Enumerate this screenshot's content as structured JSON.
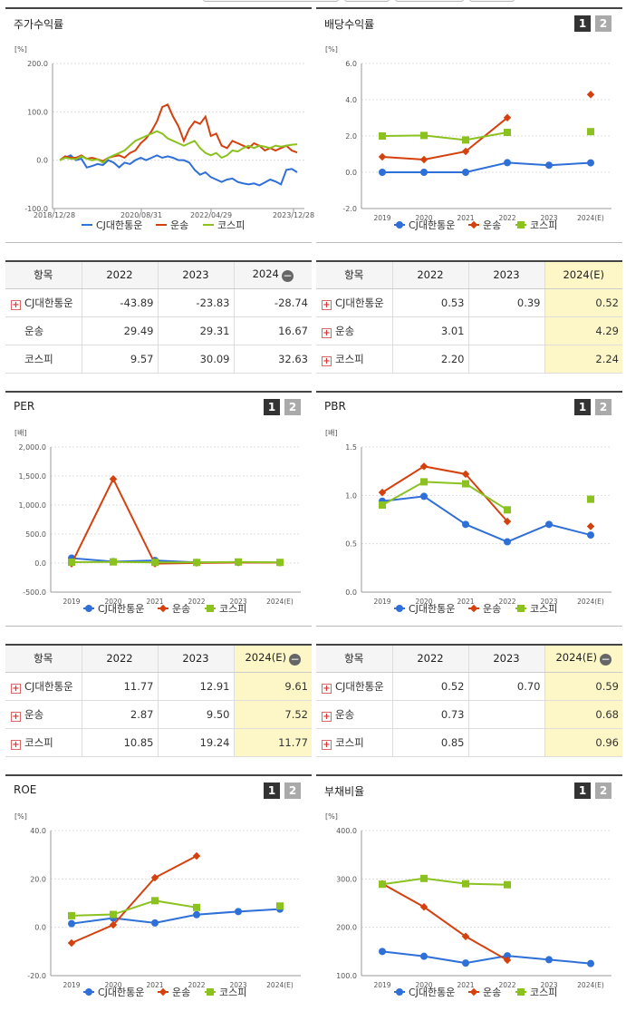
{
  "legend": [
    "CJ대한통운",
    "운송",
    "코스피"
  ],
  "colors": {
    "cj": "#2f6fd8",
    "transport": "#d4400e",
    "kospi": "#8bc21f"
  },
  "toggle": {
    "one": "1",
    "two": "2"
  },
  "panels": {
    "stock": {
      "title": "주가수익률"
    },
    "dividend": {
      "title": "배당수익률"
    },
    "per": {
      "title": "PER"
    },
    "pbr": {
      "title": "PBR"
    },
    "roe": {
      "title": "ROE"
    },
    "debt": {
      "title": "부채비율"
    }
  },
  "tables": {
    "stock": {
      "headers": [
        "항목",
        "2022",
        "2023",
        "2024"
      ],
      "rows": [
        {
          "name": "CJ대한통운",
          "plus": true,
          "values": [
            "-43.89",
            "-23.83",
            "-28.74"
          ]
        },
        {
          "name": "운송",
          "plus": false,
          "values": [
            "29.49",
            "29.31",
            "16.67"
          ]
        },
        {
          "name": "코스피",
          "plus": false,
          "values": [
            "9.57",
            "30.09",
            "32.63"
          ]
        }
      ]
    },
    "dividend": {
      "headers": [
        "항목",
        "2022",
        "2023",
        "2024(E)"
      ],
      "rows": [
        {
          "name": "CJ대한통운",
          "plus": true,
          "values": [
            "0.53",
            "0.39",
            "0.52"
          ]
        },
        {
          "name": "운송",
          "plus": true,
          "values": [
            "3.01",
            "",
            "4.29"
          ]
        },
        {
          "name": "코스피",
          "plus": true,
          "values": [
            "2.20",
            "",
            "2.24"
          ]
        }
      ]
    },
    "per": {
      "headers": [
        "항목",
        "2022",
        "2023",
        "2024(E)"
      ],
      "rows": [
        {
          "name": "CJ대한통운",
          "plus": true,
          "values": [
            "11.77",
            "12.91",
            "9.61"
          ]
        },
        {
          "name": "운송",
          "plus": true,
          "values": [
            "2.87",
            "9.50",
            "7.52"
          ]
        },
        {
          "name": "코스피",
          "plus": true,
          "values": [
            "10.85",
            "19.24",
            "11.77"
          ]
        }
      ]
    },
    "pbr": {
      "headers": [
        "항목",
        "2022",
        "2023",
        "2024(E)"
      ],
      "rows": [
        {
          "name": "CJ대한통운",
          "plus": true,
          "values": [
            "0.52",
            "0.70",
            "0.59"
          ]
        },
        {
          "name": "운송",
          "plus": true,
          "values": [
            "0.73",
            "",
            "0.68"
          ]
        },
        {
          "name": "코스피",
          "plus": true,
          "values": [
            "0.85",
            "",
            "0.96"
          ]
        }
      ]
    }
  },
  "chart_data": [
    {
      "id": "stock",
      "type": "line",
      "unit": "[%]",
      "ylim": [
        -100,
        200
      ],
      "yticks": [
        "200.0",
        "100.0",
        "0.0",
        "-100.0"
      ],
      "ytick_values": [
        200,
        100,
        0,
        -100
      ],
      "xlabels": [
        "2018/12/28",
        "2020/08/31",
        "2022/04/29",
        "2023/12/28"
      ],
      "series": [
        {
          "key": "cj",
          "values": [
            0,
            5,
            10,
            0,
            3,
            -15,
            -12,
            -8,
            -10,
            0,
            -5,
            -15,
            -5,
            -8,
            0,
            5,
            0,
            5,
            10,
            5,
            8,
            5,
            0,
            0,
            -5,
            -20,
            -30,
            -25,
            -35,
            -40,
            -45,
            -40,
            -38,
            -45,
            -48,
            -50,
            -48,
            -52,
            -46,
            -40,
            -44,
            -50,
            -20,
            -18,
            -25
          ]
        },
        {
          "key": "transport",
          "values": [
            0,
            8,
            5,
            5,
            10,
            3,
            5,
            2,
            -2,
            5,
            8,
            10,
            5,
            15,
            20,
            35,
            45,
            60,
            80,
            110,
            115,
            90,
            70,
            40,
            65,
            80,
            75,
            90,
            50,
            55,
            30,
            25,
            40,
            35,
            30,
            25,
            35,
            30,
            20,
            25,
            20,
            25,
            30,
            20,
            16
          ]
        },
        {
          "key": "kospi",
          "values": [
            0,
            5,
            3,
            2,
            8,
            3,
            0,
            2,
            -5,
            5,
            10,
            15,
            20,
            30,
            40,
            45,
            50,
            55,
            60,
            55,
            45,
            40,
            35,
            30,
            35,
            40,
            25,
            15,
            10,
            15,
            5,
            10,
            20,
            18,
            25,
            30,
            25,
            30,
            28,
            25,
            30,
            28,
            30,
            32,
            33
          ]
        }
      ]
    },
    {
      "id": "dividend",
      "type": "line",
      "unit": "[%]",
      "ylim": [
        -2,
        6
      ],
      "yticks": [
        "6.0",
        "4.0",
        "2.0",
        "0.0",
        "-2.0"
      ],
      "ytick_values": [
        6,
        4,
        2,
        0,
        -2
      ],
      "categories": [
        "2019",
        "2020",
        "2021",
        "2022",
        "2023",
        "2024(E)"
      ],
      "series": [
        {
          "key": "cj",
          "values": [
            0,
            0,
            0,
            0.53,
            0.39,
            0.52
          ]
        },
        {
          "key": "transport",
          "values": [
            0.85,
            0.7,
            1.15,
            3.01,
            null,
            4.29
          ]
        },
        {
          "key": "kospi",
          "values": [
            2.0,
            2.03,
            1.78,
            2.2,
            null,
            2.24
          ]
        }
      ]
    },
    {
      "id": "per",
      "type": "line",
      "unit": "[배]",
      "ylim": [
        -500,
        2000
      ],
      "yticks": [
        "2,000.0",
        "1,500.0",
        "1,000.0",
        "500.0",
        "0.0",
        "-500.0"
      ],
      "ytick_values": [
        2000,
        1500,
        1000,
        500,
        0,
        -500
      ],
      "categories": [
        "2019",
        "2020",
        "2021",
        "2022",
        "2023",
        "2024(E)"
      ],
      "series": [
        {
          "key": "cj",
          "values": [
            85,
            25,
            45,
            11.77,
            12.91,
            9.61
          ]
        },
        {
          "key": "transport",
          "values": [
            -10,
            1450,
            -10,
            2.87,
            9.5,
            7.52
          ]
        },
        {
          "key": "kospi",
          "values": [
            15,
            20,
            12,
            10.85,
            19.24,
            11.77
          ]
        }
      ]
    },
    {
      "id": "pbr",
      "type": "line",
      "unit": "[배]",
      "ylim": [
        0,
        1.5
      ],
      "yticks": [
        "1.5",
        "1.0",
        "0.5",
        "0.0"
      ],
      "ytick_values": [
        1.5,
        1.0,
        0.5,
        0
      ],
      "categories": [
        "2019",
        "2020",
        "2021",
        "2022",
        "2023",
        "2024(E)"
      ],
      "series": [
        {
          "key": "cj",
          "values": [
            0.94,
            0.99,
            0.7,
            0.52,
            0.7,
            0.59
          ]
        },
        {
          "key": "transport",
          "values": [
            1.03,
            1.3,
            1.22,
            0.73,
            null,
            0.68
          ]
        },
        {
          "key": "kospi",
          "values": [
            0.9,
            1.14,
            1.12,
            0.85,
            null,
            0.96
          ]
        }
      ]
    },
    {
      "id": "roe",
      "type": "line",
      "unit": "[%]",
      "ylim": [
        -20,
        40
      ],
      "yticks": [
        "40.0",
        "20.0",
        "0.0",
        "-20.0"
      ],
      "ytick_values": [
        40,
        20,
        0,
        -20
      ],
      "categories": [
        "2019",
        "2020",
        "2021",
        "2022",
        "2023",
        "2024(E)"
      ],
      "series": [
        {
          "key": "cj",
          "values": [
            1.5,
            3.8,
            1.8,
            5.2,
            6.5,
            7.5
          ]
        },
        {
          "key": "transport",
          "values": [
            -6.5,
            1.0,
            20.5,
            29.5,
            null,
            null
          ]
        },
        {
          "key": "kospi",
          "values": [
            4.8,
            5.3,
            11.0,
            8.2,
            null,
            8.8
          ]
        }
      ]
    },
    {
      "id": "debt",
      "type": "line",
      "unit": "[%]",
      "ylim": [
        100,
        400
      ],
      "yticks": [
        "400.0",
        "300.0",
        "200.0",
        "100.0"
      ],
      "ytick_values": [
        400,
        300,
        200,
        100
      ],
      "categories": [
        "2019",
        "2020",
        "2021",
        "2022",
        "2023",
        "2024(E)"
      ],
      "series": [
        {
          "key": "cj",
          "values": [
            150,
            140,
            126,
            141,
            133,
            125
          ]
        },
        {
          "key": "transport",
          "values": [
            290,
            242,
            181,
            132,
            null,
            null
          ]
        },
        {
          "key": "kospi",
          "values": [
            289,
            301,
            290,
            288,
            null,
            null
          ]
        }
      ]
    }
  ]
}
